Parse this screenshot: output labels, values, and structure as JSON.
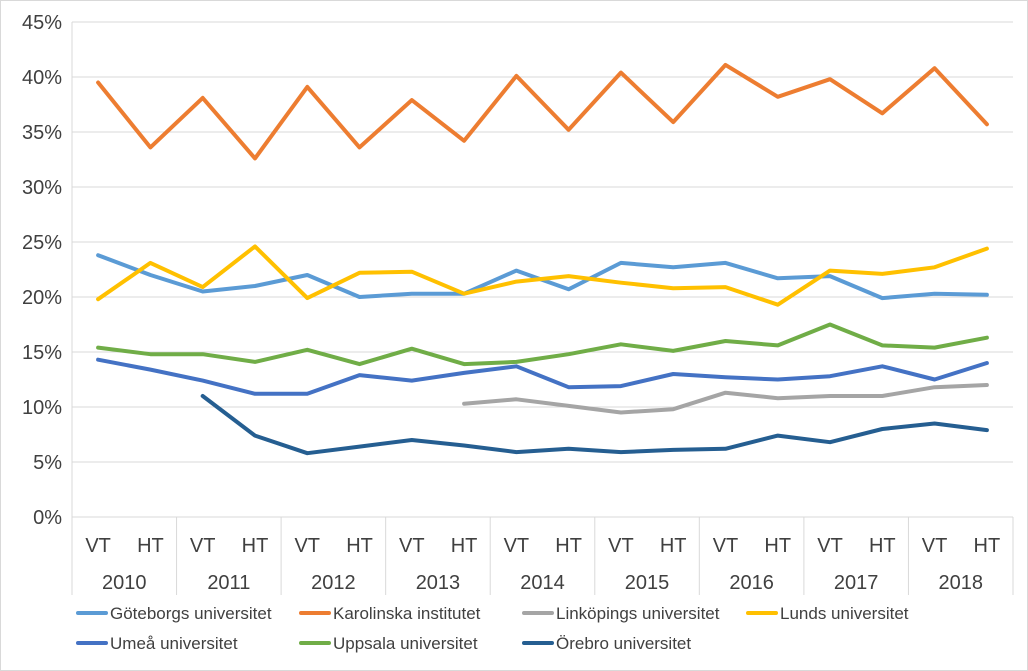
{
  "chart_data": {
    "type": "line",
    "y_axis": {
      "min": 0,
      "max": 45,
      "step": 5,
      "tick_labels": [
        "0%",
        "5%",
        "10%",
        "15%",
        "20%",
        "25%",
        "30%",
        "35%",
        "40%",
        "45%"
      ]
    },
    "x_axis": {
      "categories": [
        "VT",
        "HT",
        "VT",
        "HT",
        "VT",
        "HT",
        "VT",
        "HT",
        "VT",
        "HT",
        "VT",
        "HT",
        "VT",
        "HT",
        "VT",
        "HT",
        "VT",
        "HT"
      ],
      "groups": [
        "2010",
        "2011",
        "2012",
        "2013",
        "2014",
        "2015",
        "2016",
        "2017",
        "2018"
      ]
    },
    "grid": true,
    "legend_position": "bottom",
    "series": [
      {
        "name": "Göteborgs universitet",
        "color": "#5b9bd5",
        "values": [
          23.8,
          22.0,
          20.5,
          21.0,
          22.0,
          20.0,
          20.3,
          20.3,
          22.4,
          20.7,
          23.1,
          22.7,
          23.1,
          21.7,
          21.9,
          19.9,
          20.3,
          20.2
        ]
      },
      {
        "name": "Karolinska institutet",
        "color": "#ed7d31",
        "values": [
          39.5,
          33.6,
          38.1,
          32.6,
          39.1,
          33.6,
          37.9,
          34.2,
          40.1,
          35.2,
          40.4,
          35.9,
          41.1,
          38.2,
          39.8,
          36.7,
          40.8,
          35.7
        ]
      },
      {
        "name": "Linköpings universitet",
        "color": "#a5a5a5",
        "values": [
          null,
          null,
          null,
          null,
          null,
          null,
          null,
          10.3,
          10.7,
          10.1,
          9.5,
          9.8,
          11.3,
          10.8,
          11.0,
          11.0,
          11.8,
          12.0
        ]
      },
      {
        "name": "Lunds universitet",
        "color": "#ffc000",
        "values": [
          19.8,
          23.1,
          20.9,
          24.6,
          19.9,
          22.2,
          22.3,
          20.3,
          21.4,
          21.9,
          21.3,
          20.8,
          20.9,
          19.3,
          22.4,
          22.1,
          22.7,
          24.4
        ]
      },
      {
        "name": "Umeå universitet",
        "color": "#4472c4",
        "values": [
          14.3,
          13.4,
          12.4,
          11.2,
          11.2,
          12.9,
          12.4,
          13.1,
          13.7,
          11.8,
          11.9,
          13.0,
          12.7,
          12.5,
          12.8,
          13.7,
          12.5,
          14.0
        ]
      },
      {
        "name": "Uppsala universitet",
        "color": "#70ad47",
        "values": [
          15.4,
          14.8,
          14.8,
          14.1,
          15.2,
          13.9,
          15.3,
          13.9,
          14.1,
          14.8,
          15.7,
          15.1,
          16.0,
          15.6,
          17.5,
          15.6,
          15.4,
          16.3
        ]
      },
      {
        "name": "Örebro universitet",
        "color": "#255e91",
        "values": [
          null,
          null,
          11.0,
          7.4,
          5.8,
          6.4,
          7.0,
          6.5,
          5.9,
          6.2,
          5.9,
          6.1,
          6.2,
          7.4,
          6.8,
          8.0,
          8.5,
          7.9
        ]
      }
    ]
  }
}
